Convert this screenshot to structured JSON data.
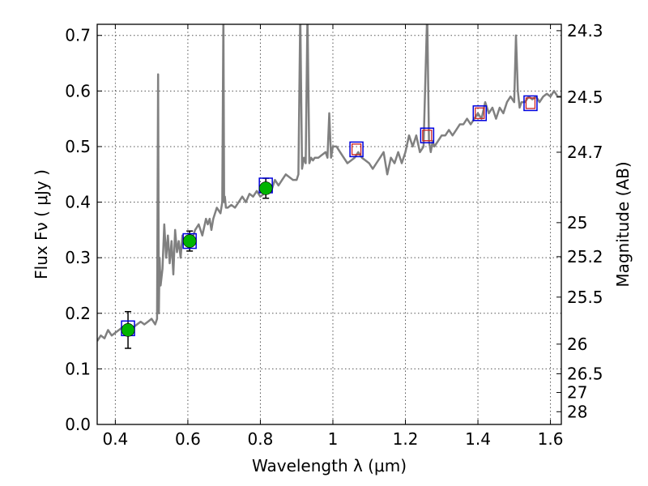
{
  "chart_data": {
    "type": "line",
    "xlabel": "Wavelength  λ (μm)",
    "ylabel_left": "Flux  Fν  ( μJy )",
    "ylabel_right": "Magnitude (AB)",
    "xlim": [
      0.35,
      1.63
    ],
    "ylim": [
      0.0,
      0.72
    ],
    "grid": true,
    "x_ticks": [
      {
        "value": 0.4,
        "label": "0.4"
      },
      {
        "value": 0.6,
        "label": "0.6"
      },
      {
        "value": 0.8,
        "label": "0.8"
      },
      {
        "value": 1.0,
        "label": "1"
      },
      {
        "value": 1.2,
        "label": "1.2"
      },
      {
        "value": 1.4,
        "label": "1.4"
      },
      {
        "value": 1.6,
        "label": "1.6"
      }
    ],
    "y_ticks": [
      {
        "value": 0.0,
        "label": "0.0"
      },
      {
        "value": 0.1,
        "label": "0.1"
      },
      {
        "value": 0.2,
        "label": "0.2"
      },
      {
        "value": 0.3,
        "label": "0.3"
      },
      {
        "value": 0.4,
        "label": "0.4"
      },
      {
        "value": 0.5,
        "label": "0.5"
      },
      {
        "value": 0.6,
        "label": "0.6"
      },
      {
        "value": 0.7,
        "label": "0.7"
      }
    ],
    "mag_ticks": [
      {
        "flux": 0.7085,
        "label": "24.3"
      },
      {
        "flux": 0.5891,
        "label": "24.5"
      },
      {
        "flux": 0.4898,
        "label": "24.7"
      },
      {
        "flux": 0.3631,
        "label": "25"
      },
      {
        "flux": 0.3019,
        "label": "25.2"
      },
      {
        "flux": 0.2291,
        "label": "25.5"
      },
      {
        "flux": 0.1445,
        "label": "26"
      },
      {
        "flux": 0.0912,
        "label": "26.5"
      },
      {
        "flux": 0.0575,
        "label": "27"
      },
      {
        "flux": 0.0229,
        "label": "28"
      }
    ],
    "colors": {
      "spectrum": "#808080",
      "observed": "#00b400",
      "model_box": "#0000dd",
      "model_inner": "#cc2222",
      "error_bar": "#000000"
    },
    "series": [
      {
        "name": "spectrum",
        "x": [
          0.35,
          0.36,
          0.37,
          0.38,
          0.39,
          0.4,
          0.41,
          0.42,
          0.43,
          0.44,
          0.45,
          0.46,
          0.47,
          0.48,
          0.49,
          0.5,
          0.51,
          0.515,
          0.518,
          0.52,
          0.522,
          0.525,
          0.53,
          0.535,
          0.54,
          0.545,
          0.55,
          0.555,
          0.56,
          0.565,
          0.57,
          0.575,
          0.58,
          0.585,
          0.59,
          0.6,
          0.61,
          0.62,
          0.63,
          0.64,
          0.65,
          0.655,
          0.66,
          0.665,
          0.67,
          0.68,
          0.69,
          0.695,
          0.698,
          0.7,
          0.702,
          0.705,
          0.71,
          0.72,
          0.73,
          0.74,
          0.75,
          0.76,
          0.77,
          0.78,
          0.79,
          0.8,
          0.81,
          0.82,
          0.83,
          0.84,
          0.85,
          0.86,
          0.87,
          0.88,
          0.89,
          0.9,
          0.905,
          0.91,
          0.915,
          0.92,
          0.925,
          0.93,
          0.935,
          0.94,
          0.945,
          0.95,
          0.96,
          0.97,
          0.98,
          0.985,
          0.99,
          0.995,
          1.0,
          1.01,
          1.02,
          1.03,
          1.04,
          1.05,
          1.06,
          1.07,
          1.08,
          1.09,
          1.1,
          1.11,
          1.12,
          1.13,
          1.14,
          1.15,
          1.16,
          1.17,
          1.18,
          1.19,
          1.2,
          1.21,
          1.22,
          1.23,
          1.24,
          1.25,
          1.26,
          1.265,
          1.27,
          1.275,
          1.28,
          1.29,
          1.3,
          1.31,
          1.32,
          1.33,
          1.34,
          1.35,
          1.36,
          1.37,
          1.38,
          1.39,
          1.4,
          1.41,
          1.42,
          1.43,
          1.44,
          1.45,
          1.46,
          1.47,
          1.48,
          1.49,
          1.5,
          1.505,
          1.51,
          1.515,
          1.52,
          1.53,
          1.54,
          1.55,
          1.56,
          1.57,
          1.58,
          1.59,
          1.6,
          1.61,
          1.62,
          1.63
        ],
        "y": [
          0.15,
          0.16,
          0.155,
          0.17,
          0.16,
          0.165,
          0.17,
          0.175,
          0.17,
          0.18,
          0.175,
          0.18,
          0.185,
          0.18,
          0.185,
          0.19,
          0.18,
          0.19,
          0.63,
          0.2,
          0.3,
          0.25,
          0.28,
          0.36,
          0.3,
          0.34,
          0.29,
          0.33,
          0.27,
          0.35,
          0.31,
          0.33,
          0.3,
          0.34,
          0.33,
          0.335,
          0.33,
          0.35,
          0.36,
          0.34,
          0.37,
          0.36,
          0.37,
          0.35,
          0.37,
          0.39,
          0.38,
          0.4,
          0.74,
          0.4,
          0.41,
          0.39,
          0.39,
          0.395,
          0.39,
          0.4,
          0.41,
          0.4,
          0.415,
          0.41,
          0.42,
          0.41,
          0.415,
          0.43,
          0.42,
          0.44,
          0.43,
          0.44,
          0.45,
          0.445,
          0.44,
          0.44,
          0.45,
          0.74,
          0.46,
          0.48,
          0.47,
          0.74,
          0.47,
          0.48,
          0.475,
          0.48,
          0.48,
          0.485,
          0.49,
          0.48,
          0.56,
          0.48,
          0.5,
          0.5,
          0.49,
          0.48,
          0.47,
          0.475,
          0.48,
          0.49,
          0.48,
          0.475,
          0.47,
          0.46,
          0.47,
          0.48,
          0.49,
          0.45,
          0.48,
          0.47,
          0.49,
          0.47,
          0.49,
          0.52,
          0.5,
          0.52,
          0.49,
          0.5,
          0.74,
          0.51,
          0.49,
          0.51,
          0.5,
          0.51,
          0.52,
          0.52,
          0.53,
          0.52,
          0.53,
          0.54,
          0.54,
          0.55,
          0.54,
          0.55,
          0.56,
          0.55,
          0.58,
          0.56,
          0.57,
          0.55,
          0.57,
          0.56,
          0.58,
          0.59,
          0.58,
          0.7,
          0.6,
          0.57,
          0.58,
          0.58,
          0.59,
          0.585,
          0.59,
          0.58,
          0.59,
          0.595,
          0.59,
          0.6,
          0.59,
          0.59
        ]
      },
      {
        "name": "observed",
        "x": [
          0.435,
          0.605,
          0.815
        ],
        "y": [
          0.17,
          0.33,
          0.425
        ],
        "yerr": [
          0.033,
          0.018,
          0.018
        ]
      },
      {
        "name": "model",
        "x": [
          0.435,
          0.605,
          0.815,
          1.065,
          1.26,
          1.405,
          1.545
        ],
        "y": [
          0.173,
          0.33,
          0.43,
          0.495,
          0.52,
          0.56,
          0.578
        ]
      }
    ]
  }
}
